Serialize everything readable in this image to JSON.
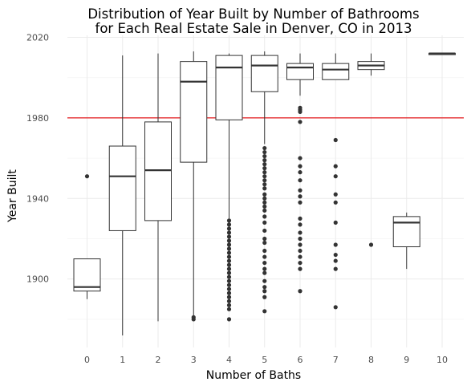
{
  "chart_data": {
    "type": "boxplot",
    "title": [
      "Distribution of Year Built by Number of Bathrooms",
      "for Each Real Estate Sale in Denver, CO in 2013"
    ],
    "xlabel": "Number of Baths",
    "ylabel": "Year Built",
    "ylim": [
      1866,
      2021
    ],
    "y_ticks": [
      1900,
      1940,
      1980,
      2020
    ],
    "y_minor_ticks": [
      1880,
      1920,
      1960,
      2000
    ],
    "grid": true,
    "reference_line": {
      "y": 1980,
      "color": "#e31a1c"
    },
    "categories": [
      "0",
      "1",
      "2",
      "3",
      "4",
      "5",
      "6",
      "7",
      "8",
      "9",
      "10"
    ],
    "boxes": [
      {
        "x": "0",
        "q1": 1894,
        "median": 1896,
        "q3": 1910,
        "whisker_low": 1890,
        "whisker_high": 1910,
        "outliers": [
          1951
        ]
      },
      {
        "x": "1",
        "q1": 1924,
        "median": 1951,
        "q3": 1966,
        "whisker_low": 1872,
        "whisker_high": 2011,
        "outliers": []
      },
      {
        "x": "2",
        "q1": 1929,
        "median": 1954,
        "q3": 1978,
        "whisker_low": 1879,
        "whisker_high": 2012,
        "outliers": []
      },
      {
        "x": "3",
        "q1": 1958,
        "median": 1998,
        "q3": 2008,
        "whisker_low": 1881,
        "whisker_high": 2013,
        "outliers": [
          1880,
          1881
        ]
      },
      {
        "x": "4",
        "q1": 1979,
        "median": 2005,
        "q3": 2011,
        "whisker_low": 1930,
        "whisker_high": 2012,
        "outliers": [
          1880,
          1885,
          1887,
          1889,
          1891,
          1893,
          1895,
          1897,
          1899,
          1901,
          1903,
          1905,
          1907,
          1909,
          1911,
          1913,
          1915,
          1917,
          1919,
          1921,
          1923,
          1925,
          1927,
          1929
        ]
      },
      {
        "x": "5",
        "q1": 1993,
        "median": 2006,
        "q3": 2011,
        "whisker_low": 1967,
        "whisker_high": 2013,
        "outliers": [
          1884,
          1891,
          1894,
          1896,
          1899,
          1903,
          1905,
          1908,
          1911,
          1914,
          1918,
          1920,
          1924,
          1928,
          1931,
          1934,
          1936,
          1938,
          1940,
          1942,
          1945,
          1947,
          1949,
          1951,
          1953,
          1955,
          1957,
          1959,
          1961,
          1963,
          1965
        ]
      },
      {
        "x": "6",
        "q1": 1999,
        "median": 2005,
        "q3": 2007,
        "whisker_low": 1991,
        "whisker_high": 2012,
        "outliers": [
          1894,
          1905,
          1908,
          1911,
          1914,
          1917,
          1920,
          1923,
          1927,
          1930,
          1938,
          1941,
          1944,
          1949,
          1953,
          1956,
          1960,
          1978,
          1983,
          1984,
          1985
        ]
      },
      {
        "x": "7",
        "q1": 1999,
        "median": 2004,
        "q3": 2007,
        "whisker_low": 1999,
        "whisker_high": 2012,
        "outliers": [
          1886,
          1905,
          1909,
          1912,
          1917,
          1928,
          1938,
          1942,
          1951,
          1956,
          1969
        ]
      },
      {
        "x": "8",
        "q1": 2004,
        "median": 2006,
        "q3": 2008,
        "whisker_low": 2001,
        "whisker_high": 2012,
        "outliers": [
          1917
        ]
      },
      {
        "x": "9",
        "q1": 1916,
        "median": 1928,
        "q3": 1931,
        "whisker_low": 1905,
        "whisker_high": 1933,
        "outliers": []
      },
      {
        "x": "10",
        "q1": 2012,
        "median": 2012,
        "q3": 2012,
        "whisker_low": 2012,
        "whisker_high": 2012,
        "outliers": []
      }
    ]
  }
}
